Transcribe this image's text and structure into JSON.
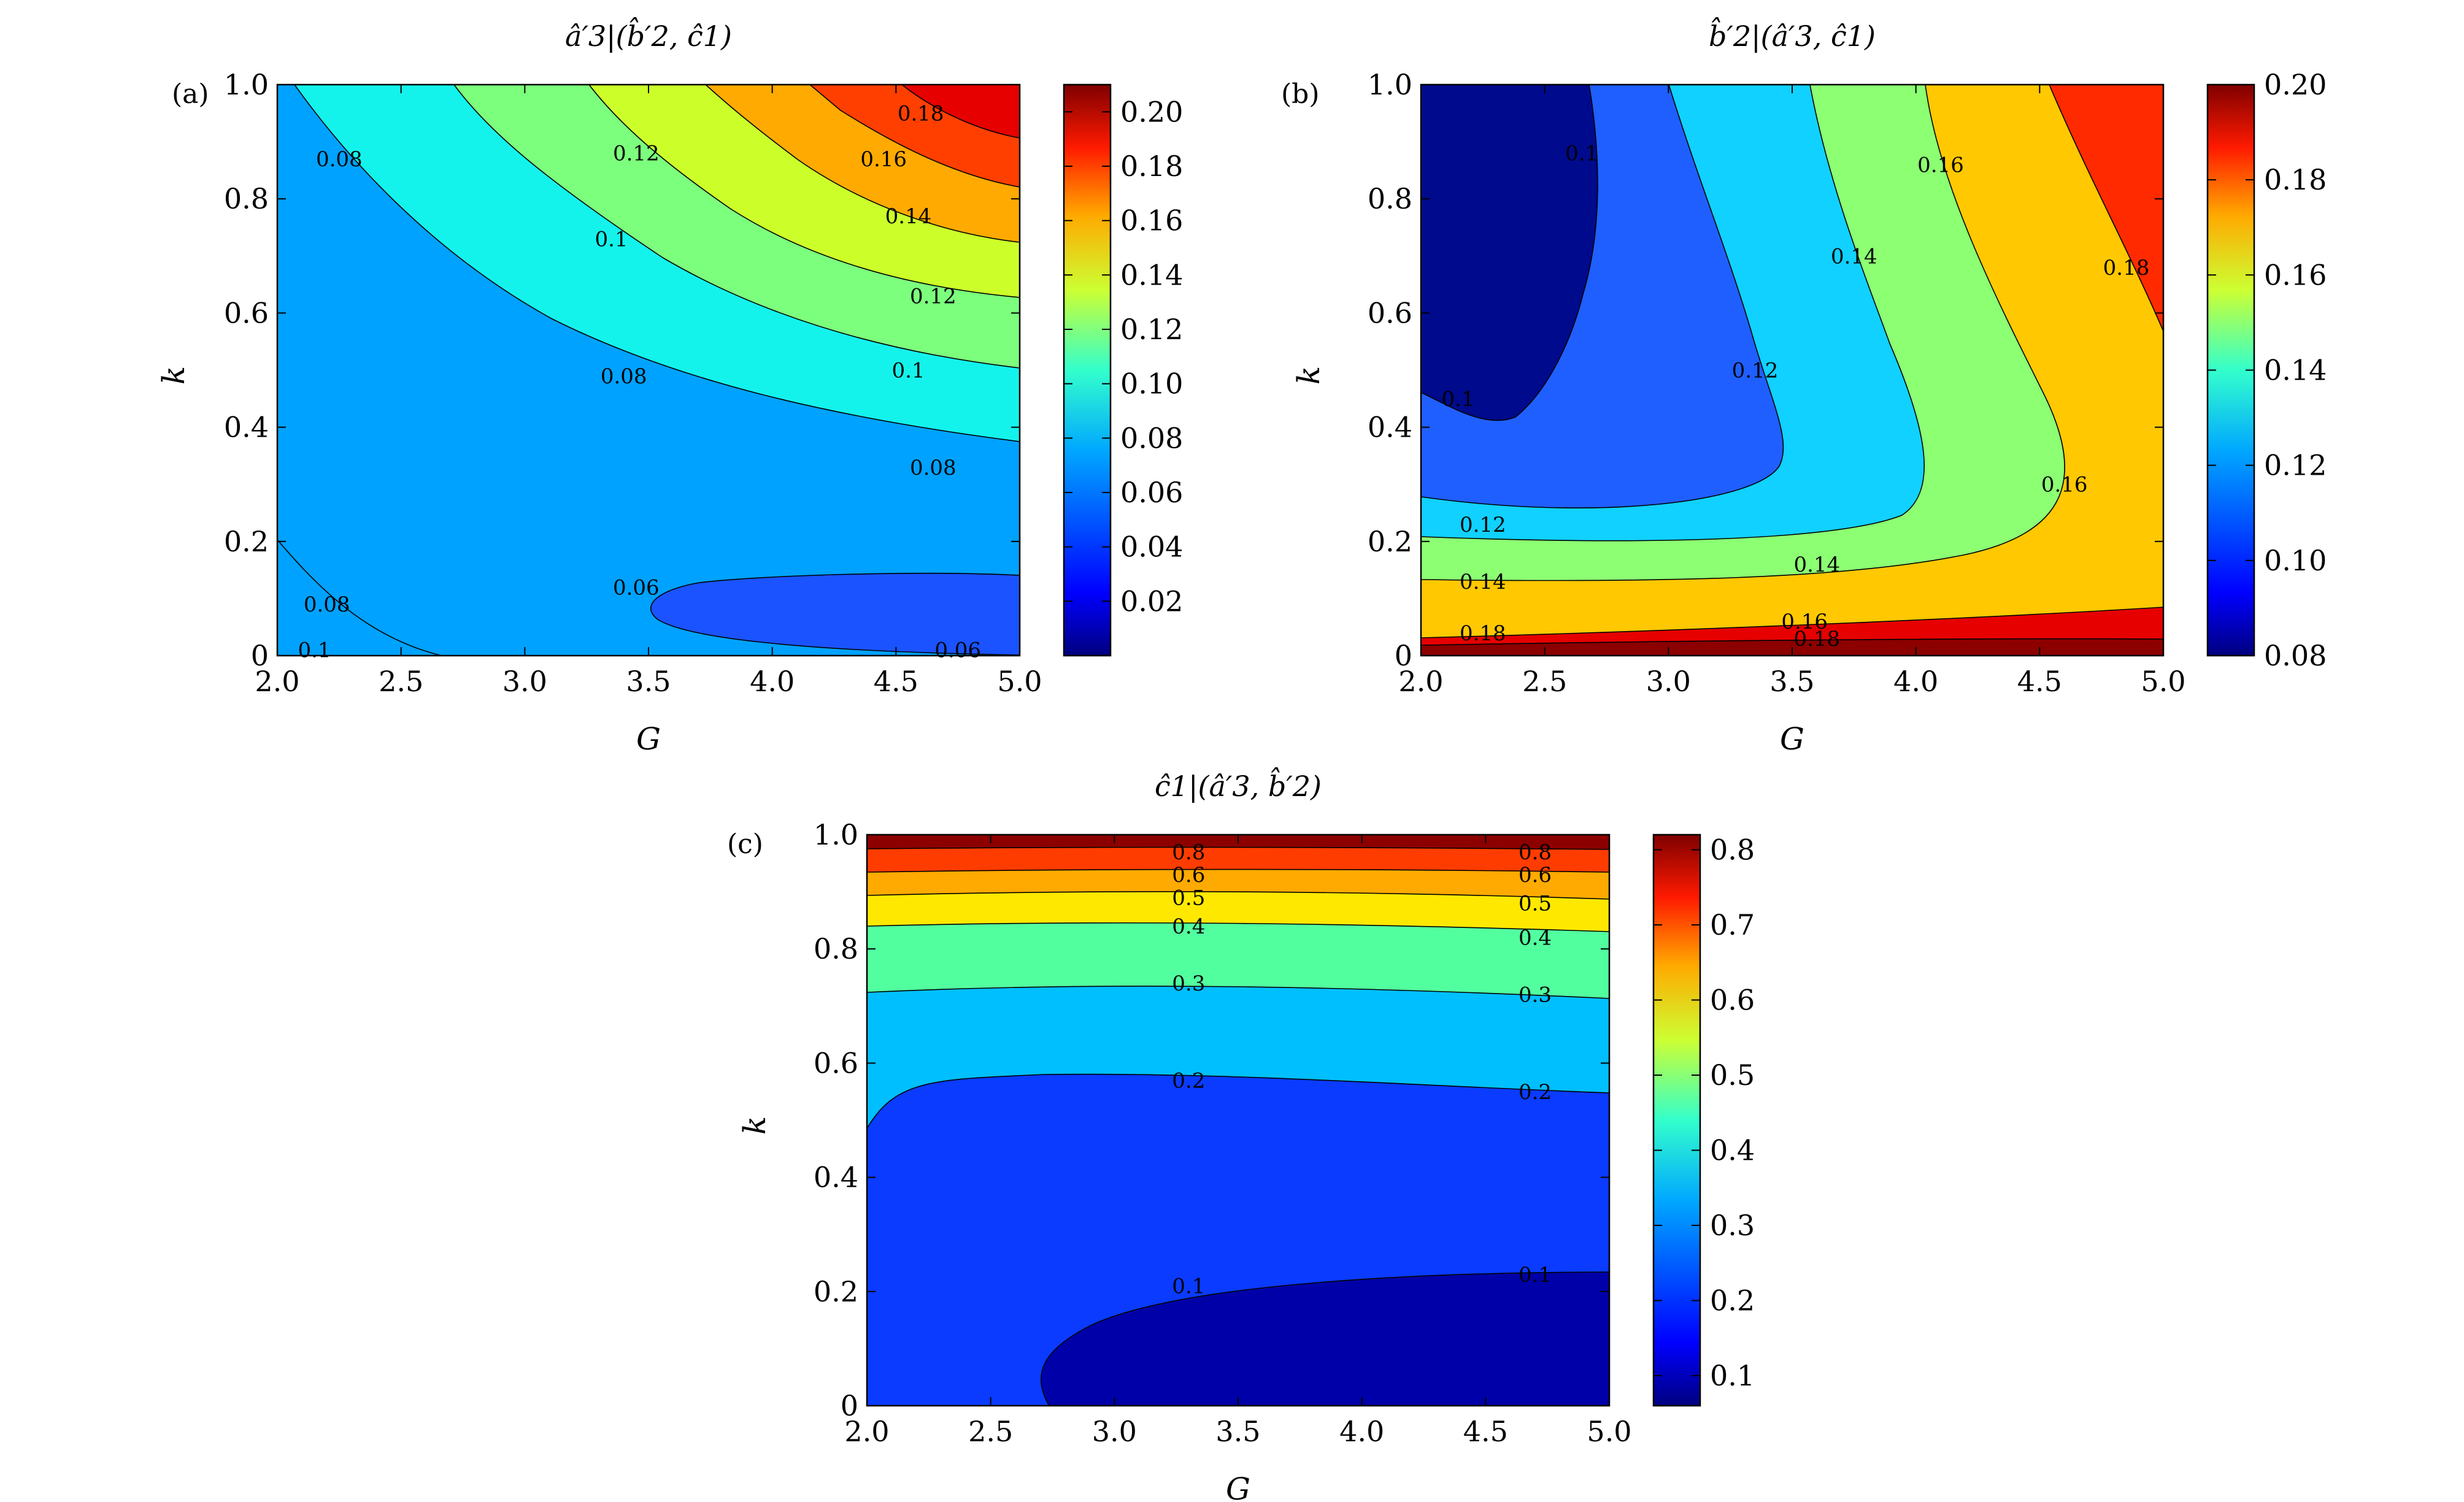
{
  "chart_data": [
    {
      "type": "heatmap",
      "panel_label": "(a)",
      "title": "â′3|(b̂′2, ĉ1)",
      "xlabel": "G",
      "ylabel": "k",
      "xlim": [
        2.0,
        5.0
      ],
      "ylim": [
        0,
        1.0
      ],
      "xticks": [
        "2.0",
        "2.5",
        "3.0",
        "3.5",
        "4.0",
        "4.5",
        "5.0"
      ],
      "yticks": [
        "0",
        "0.2",
        "0.4",
        "0.6",
        "0.8",
        "1.0"
      ],
      "colorbar": {
        "range": [
          0,
          0.21
        ],
        "ticks": [
          "0.02",
          "0.04",
          "0.06",
          "0.08",
          "0.10",
          "0.12",
          "0.14",
          "0.16",
          "0.18",
          "0.20"
        ],
        "tick_values": [
          0.02,
          0.04,
          0.06,
          0.08,
          0.1,
          0.12,
          0.14,
          0.16,
          0.18,
          0.2
        ]
      },
      "contour_levels": [
        {
          "value": "0.06",
          "band_color": "#1a53ff",
          "label_points": [
            [
              3.45,
              0.12
            ],
            [
              4.75,
              0.01
            ]
          ]
        },
        {
          "value": "0.08",
          "band_color": "#00a2ff",
          "label_points": [
            [
              2.25,
              0.87
            ],
            [
              3.4,
              0.49
            ],
            [
              4.65,
              0.33
            ],
            [
              2.2,
              0.09
            ]
          ]
        },
        {
          "value": "0.1",
          "band_color": "#13f3ec",
          "label_points": [
            [
              3.35,
              0.73
            ],
            [
              4.55,
              0.5
            ],
            [
              2.15,
              0.01
            ]
          ]
        },
        {
          "value": "0.12",
          "band_color": "#7cff7c",
          "label_points": [
            [
              3.45,
              0.88
            ],
            [
              4.65,
              0.63
            ]
          ]
        },
        {
          "value": "0.14",
          "band_color": "#ccff2a",
          "label_points": [
            [
              4.55,
              0.77
            ]
          ]
        },
        {
          "value": "0.16",
          "band_color": "#ffaa00",
          "label_points": [
            [
              4.45,
              0.87
            ]
          ]
        },
        {
          "value": "0.18",
          "band_color": "#ff3f00",
          "label_points": [
            [
              4.6,
              0.95
            ]
          ]
        }
      ]
    },
    {
      "type": "heatmap",
      "panel_label": "(b)",
      "title": "b̂′2|(â′3, ĉ1)",
      "xlabel": "G",
      "ylabel": "k",
      "xlim": [
        2.0,
        5.0
      ],
      "ylim": [
        0,
        1.0
      ],
      "xticks": [
        "2.0",
        "2.5",
        "3.0",
        "3.5",
        "4.0",
        "4.5",
        "5.0"
      ],
      "yticks": [
        "0",
        "0.2",
        "0.4",
        "0.6",
        "0.8",
        "1.0"
      ],
      "colorbar": {
        "range": [
          0.08,
          0.2
        ],
        "ticks": [
          "0.08",
          "0.10",
          "0.12",
          "0.14",
          "0.16",
          "0.18",
          "0.20"
        ],
        "tick_values": [
          0.08,
          0.1,
          0.12,
          0.14,
          0.16,
          0.18,
          0.2
        ]
      },
      "contour_levels": [
        {
          "value": "0.1",
          "band_color": "#000a8c",
          "label_points": [
            [
              2.65,
              0.88
            ],
            [
              2.15,
              0.45
            ]
          ]
        },
        {
          "value": "0.12",
          "band_color": "#1f5fff",
          "label_points": [
            [
              3.35,
              0.5
            ],
            [
              2.25,
              0.23
            ]
          ]
        },
        {
          "value": "0.14",
          "band_color": "#10d1ff",
          "label_points": [
            [
              3.75,
              0.7
            ],
            [
              3.6,
              0.16
            ],
            [
              2.25,
              0.13
            ]
          ]
        },
        {
          "value": "0.16",
          "band_color": "#8cff73",
          "label_points": [
            [
              4.1,
              0.86
            ],
            [
              4.6,
              0.3
            ],
            [
              3.55,
              0.06
            ]
          ]
        },
        {
          "value": "0.18",
          "band_color": "#ffc800",
          "label_points": [
            [
              4.85,
              0.68
            ],
            [
              3.6,
              0.03
            ],
            [
              2.25,
              0.04
            ]
          ]
        }
      ]
    },
    {
      "type": "heatmap",
      "panel_label": "(c)",
      "title": "ĉ1|(â′3, b̂′2)",
      "xlabel": "G",
      "ylabel": "k",
      "xlim": [
        2.0,
        5.0
      ],
      "ylim": [
        0,
        1.0
      ],
      "xticks": [
        "2.0",
        "2.5",
        "3.0",
        "3.5",
        "4.0",
        "4.5",
        "5.0"
      ],
      "yticks": [
        "0",
        "0.2",
        "0.4",
        "0.6",
        "0.8",
        "1.0"
      ],
      "colorbar": {
        "range": [
          0.06,
          0.82
        ],
        "ticks": [
          "0.1",
          "0.2",
          "0.3",
          "0.4",
          "0.5",
          "0.6",
          "0.7",
          "0.8"
        ],
        "tick_values": [
          0.1,
          0.2,
          0.3,
          0.4,
          0.5,
          0.6,
          0.7,
          0.8
        ]
      },
      "contour_levels": [
        {
          "value": "0.1",
          "band_color": "#0000a8",
          "label_points": [
            [
              3.3,
              0.21
            ],
            [
              4.7,
              0.23
            ]
          ]
        },
        {
          "value": "0.2",
          "band_color": "#0a3bff",
          "label_points": [
            [
              3.3,
              0.57
            ],
            [
              4.7,
              0.55
            ]
          ]
        },
        {
          "value": "0.3",
          "band_color": "#00bfff",
          "label_points": [
            [
              3.3,
              0.74
            ],
            [
              4.7,
              0.72
            ]
          ]
        },
        {
          "value": "0.4",
          "band_color": "#52ff9f",
          "label_points": [
            [
              3.3,
              0.84
            ],
            [
              4.7,
              0.82
            ]
          ]
        },
        {
          "value": "0.5",
          "band_color": "#ffe800",
          "label_points": [
            [
              3.3,
              0.89
            ],
            [
              4.7,
              0.88
            ]
          ]
        },
        {
          "value": "0.6",
          "band_color": "#ff7e00",
          "label_points": [
            [
              3.3,
              0.93
            ],
            [
              4.7,
              0.93
            ]
          ]
        },
        {
          "value": "0.8",
          "band_color": "#8c0000",
          "label_points": [
            [
              3.3,
              0.97
            ],
            [
              4.7,
              0.97
            ]
          ]
        }
      ]
    }
  ]
}
